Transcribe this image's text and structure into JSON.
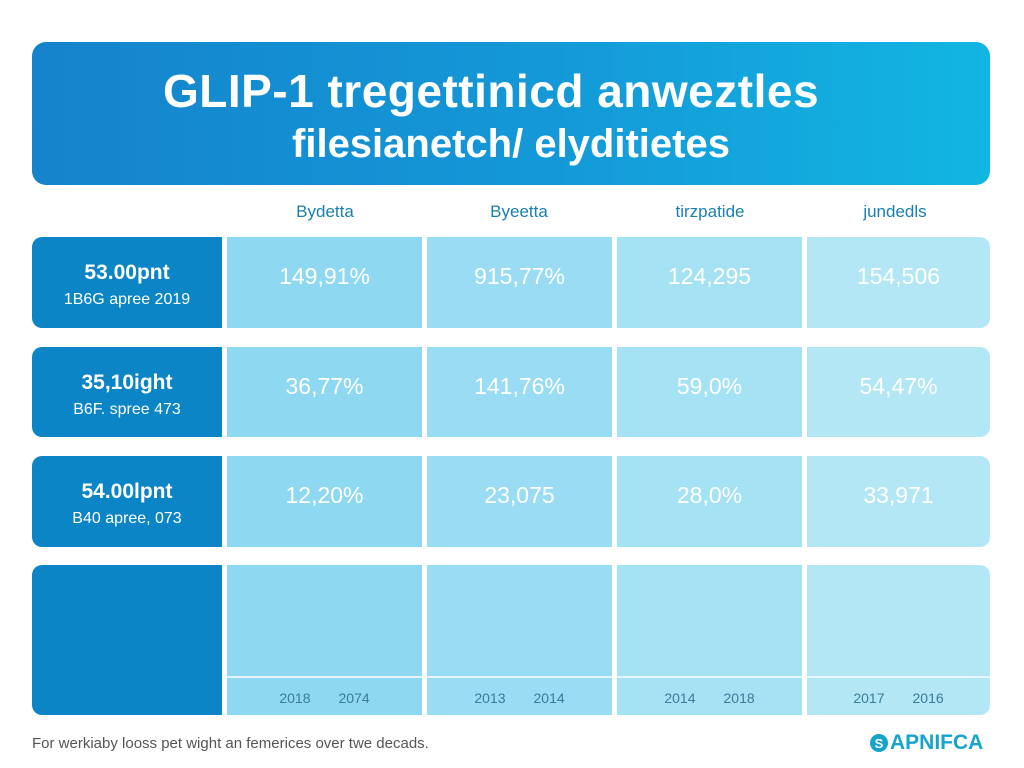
{
  "header": {
    "title_line1": "GLIP-1  tregettinicd anweztles",
    "title_line2": "filesianetch/ elyditietes"
  },
  "columns": [
    "Bydetta",
    "Byeetta",
    "tirzpatide",
    "jundedls"
  ],
  "rows": [
    {
      "label": "53.00pnt",
      "sublabel": "1B6G apree 2019",
      "values": [
        "149,91%",
        "915,77%",
        "124,295",
        "154,506"
      ]
    },
    {
      "label": "35,10ight",
      "sublabel": "B6F. spree 473",
      "values": [
        "36,77%",
        "141,76%",
        "59,0%",
        "54,47%"
      ]
    },
    {
      "label": "54.00lpnt",
      "sublabel": "B40 apree, 073",
      "values": [
        "12,20%",
        "23,075",
        "28,0%",
        "33,971"
      ]
    }
  ],
  "years": [
    [
      "2018",
      "2074"
    ],
    [
      "2013",
      "2014"
    ],
    [
      "2014",
      "2018"
    ],
    [
      "2017",
      "2016"
    ]
  ],
  "footer": {
    "note": "For werkiaby looss pet wight an femerices over twe decads.",
    "logo": "APNIFCA",
    "logo_icon": "S"
  },
  "colors": {
    "header": "#1583cc",
    "row_label": "#0b85c6",
    "cell": "#99dcf3",
    "logo": "#17a4cb"
  }
}
